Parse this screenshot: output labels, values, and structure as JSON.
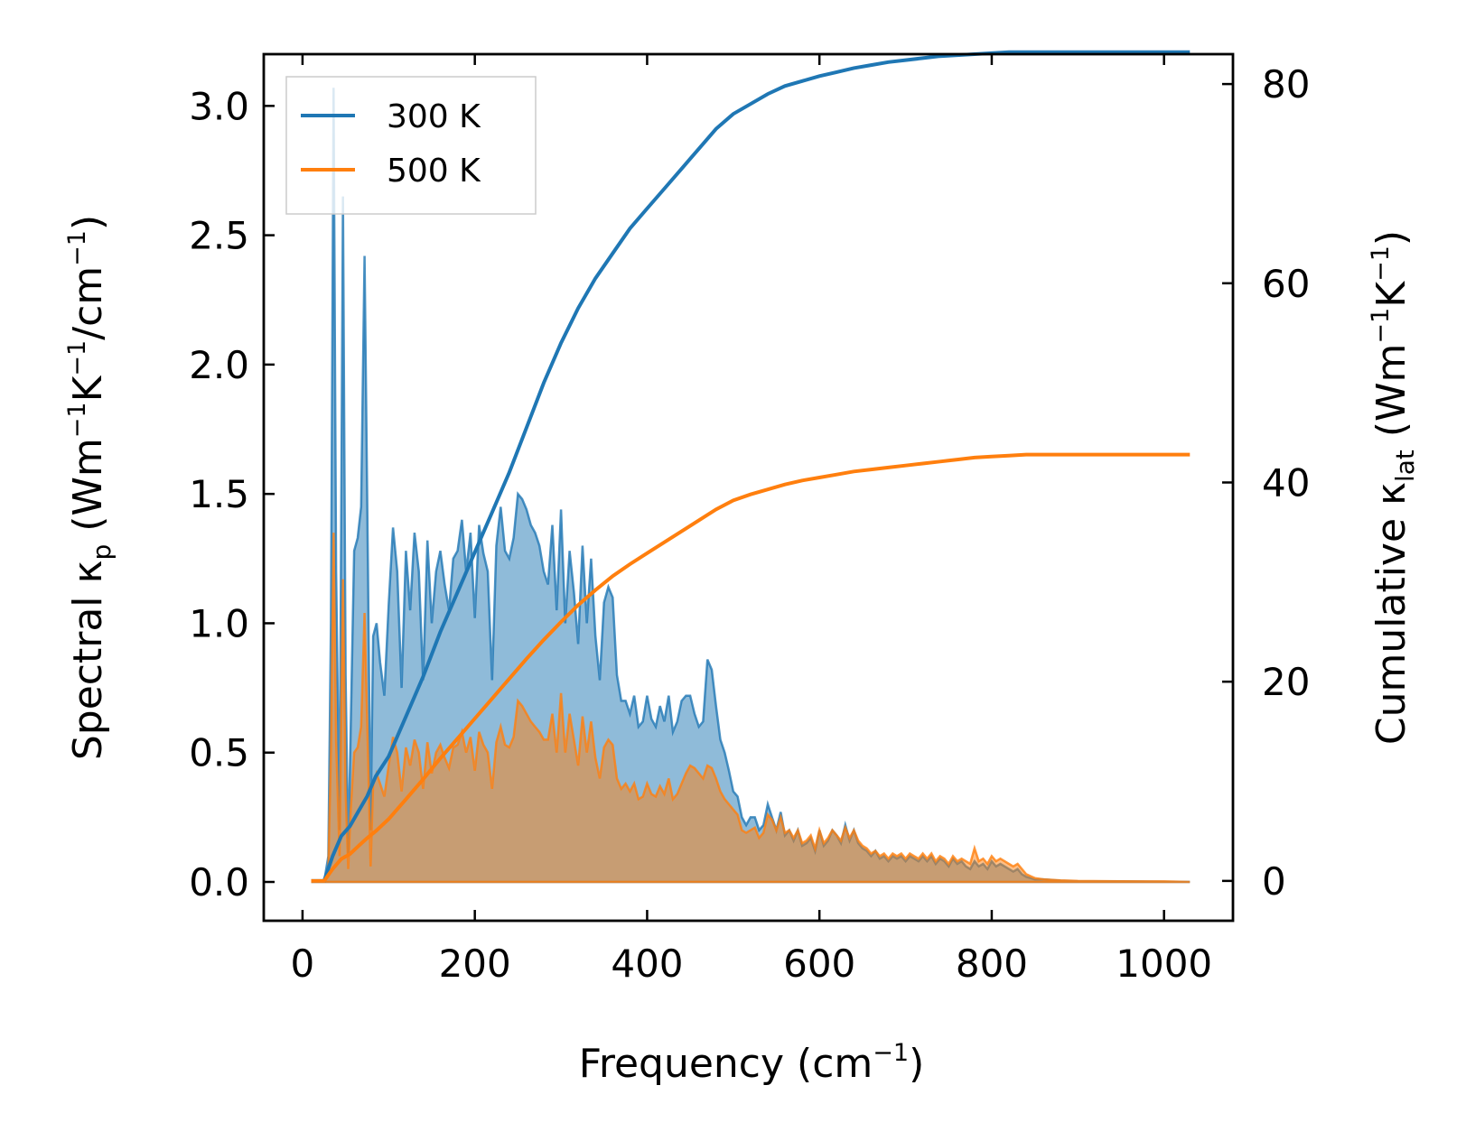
{
  "chart_data": {
    "type": "area+line (dual axis)",
    "xlabel": "Frequency",
    "xlabel_unit_base": "cm",
    "xlabel_unit_exp": "−1",
    "xlim": [
      -45,
      1080
    ],
    "xticks": [
      0,
      200,
      400,
      600,
      800,
      1000
    ],
    "xtick_labels": [
      "0",
      "200",
      "400",
      "600",
      "800",
      "1000"
    ],
    "y_left": {
      "label_prefix": "Spectral κ",
      "label_sub": "p",
      "label_unit": "(Wm",
      "label_exp1": "−1",
      "label_mid": "K",
      "label_exp2": "−1",
      "label_tail": "/cm",
      "label_exp3": "−1",
      "label_close": ")",
      "ylim": [
        -0.15,
        3.2
      ],
      "ticks": [
        0.0,
        0.5,
        1.0,
        1.5,
        2.0,
        2.5,
        3.0
      ],
      "tick_labels": [
        "0.0",
        "0.5",
        "1.0",
        "1.5",
        "2.0",
        "2.5",
        "3.0"
      ]
    },
    "y_right": {
      "label_prefix": "Cumulative κ",
      "label_sub": "lat",
      "label_unit": "(Wm",
      "label_exp1": "−1",
      "label_mid": "K",
      "label_exp2": "−1",
      "label_close": ")",
      "ylim": [
        -4,
        83
      ],
      "ticks": [
        0,
        20,
        40,
        60,
        80
      ],
      "tick_labels": [
        "0",
        "20",
        "40",
        "60",
        "80"
      ]
    },
    "legend": {
      "position": "top-left",
      "entries": [
        {
          "label": "300 K",
          "color": "#1f77b4"
        },
        {
          "label": "500 K",
          "color": "#ff7f0e"
        }
      ]
    },
    "series": [
      {
        "name": "300 K",
        "color": "#1f77b4",
        "fill_color": "#1f77b4",
        "fill_opacity": 0.5,
        "spectral": {
          "x": [
            10,
            25,
            30,
            33,
            36,
            39,
            43,
            47,
            50,
            53,
            56,
            60,
            64,
            68,
            72,
            76,
            79,
            82,
            86,
            90,
            95,
            100,
            105,
            110,
            115,
            120,
            125,
            130,
            135,
            140,
            145,
            150,
            155,
            160,
            165,
            170,
            175,
            180,
            185,
            190,
            195,
            200,
            205,
            210,
            215,
            220,
            225,
            230,
            235,
            240,
            245,
            250,
            255,
            260,
            265,
            270,
            275,
            280,
            285,
            290,
            295,
            300,
            305,
            310,
            315,
            320,
            325,
            330,
            335,
            340,
            345,
            350,
            355,
            360,
            365,
            370,
            375,
            380,
            385,
            390,
            395,
            400,
            405,
            410,
            415,
            420,
            425,
            430,
            435,
            440,
            445,
            450,
            455,
            460,
            465,
            470,
            475,
            480,
            485,
            490,
            495,
            500,
            505,
            510,
            515,
            520,
            525,
            530,
            535,
            540,
            545,
            550,
            555,
            560,
            565,
            570,
            575,
            580,
            585,
            590,
            595,
            600,
            605,
            610,
            615,
            620,
            625,
            630,
            635,
            640,
            645,
            650,
            655,
            660,
            665,
            670,
            675,
            680,
            685,
            690,
            695,
            700,
            705,
            710,
            715,
            720,
            725,
            730,
            735,
            740,
            745,
            750,
            755,
            760,
            765,
            770,
            775,
            780,
            785,
            790,
            795,
            800,
            805,
            810,
            815,
            820,
            825,
            830,
            835,
            840,
            850,
            860,
            880,
            900,
            950,
            1000,
            1030
          ],
          "y": [
            0,
            0,
            0.1,
            1.0,
            3.07,
            1.2,
            0.2,
            2.65,
            0.8,
            0.1,
            0.6,
            1.28,
            1.33,
            1.45,
            2.42,
            1.2,
            0.2,
            0.95,
            1.0,
            0.85,
            0.72,
            1.07,
            1.37,
            1.2,
            0.75,
            1.28,
            1.05,
            1.35,
            1.2,
            0.78,
            1.32,
            1.0,
            1.2,
            1.28,
            1.15,
            1.05,
            1.25,
            1.28,
            1.4,
            1.2,
            1.35,
            1.02,
            1.38,
            1.27,
            1.2,
            0.78,
            1.3,
            1.45,
            1.28,
            1.25,
            1.33,
            1.5,
            1.48,
            1.44,
            1.38,
            1.35,
            1.3,
            1.2,
            1.15,
            1.38,
            1.05,
            1.44,
            1.0,
            1.28,
            1.12,
            0.92,
            1.3,
            1.0,
            1.25,
            0.95,
            0.78,
            1.08,
            1.14,
            1.1,
            0.8,
            0.7,
            0.7,
            0.65,
            0.72,
            0.6,
            0.62,
            0.72,
            0.63,
            0.6,
            0.68,
            0.62,
            0.72,
            0.58,
            0.62,
            0.7,
            0.72,
            0.72,
            0.65,
            0.6,
            0.62,
            0.86,
            0.82,
            0.68,
            0.55,
            0.5,
            0.43,
            0.35,
            0.33,
            0.25,
            0.22,
            0.25,
            0.25,
            0.2,
            0.22,
            0.3,
            0.25,
            0.2,
            0.27,
            0.18,
            0.2,
            0.16,
            0.2,
            0.14,
            0.15,
            0.17,
            0.12,
            0.2,
            0.14,
            0.16,
            0.2,
            0.18,
            0.15,
            0.22,
            0.16,
            0.2,
            0.15,
            0.13,
            0.12,
            0.1,
            0.12,
            0.09,
            0.1,
            0.08,
            0.1,
            0.09,
            0.1,
            0.08,
            0.1,
            0.09,
            0.08,
            0.1,
            0.08,
            0.1,
            0.07,
            0.09,
            0.08,
            0.06,
            0.09,
            0.07,
            0.08,
            0.06,
            0.05,
            0.08,
            0.06,
            0.07,
            0.05,
            0.08,
            0.06,
            0.07,
            0.06,
            0.05,
            0.04,
            0.05,
            0.03,
            0.02,
            0.01,
            0.01,
            0.005,
            0.003,
            0.002,
            0.001,
            0.0
          ]
        },
        "cumulative": {
          "x": [
            10,
            25,
            35,
            45,
            55,
            65,
            75,
            85,
            100,
            120,
            140,
            160,
            180,
            200,
            220,
            240,
            260,
            280,
            300,
            320,
            340,
            360,
            380,
            400,
            420,
            440,
            460,
            480,
            500,
            520,
            540,
            560,
            580,
            600,
            620,
            640,
            660,
            680,
            700,
            720,
            740,
            760,
            780,
            800,
            820,
            840,
            860,
            900,
            950,
            1000,
            1030
          ],
          "y": [
            0,
            0,
            2.5,
            4.5,
            5.5,
            7.0,
            8.5,
            10.5,
            12.5,
            16.5,
            20.5,
            25.0,
            29.0,
            33.0,
            37.0,
            41.0,
            45.5,
            50.0,
            54.0,
            57.5,
            60.5,
            63.0,
            65.5,
            67.5,
            69.5,
            71.5,
            73.5,
            75.5,
            77.0,
            78.0,
            79.0,
            79.8,
            80.3,
            80.8,
            81.2,
            81.6,
            81.9,
            82.2,
            82.4,
            82.6,
            82.8,
            82.9,
            83.0,
            83.1,
            83.2,
            83.2,
            83.2,
            83.2,
            83.2,
            83.2,
            83.2
          ]
        }
      },
      {
        "name": "500 K",
        "color": "#ff7f0e",
        "fill_color": "#ff7f0e",
        "fill_opacity": 0.5,
        "spectral": {
          "x": [
            10,
            25,
            30,
            33,
            36,
            39,
            43,
            47,
            50,
            53,
            56,
            60,
            64,
            68,
            72,
            76,
            79,
            82,
            86,
            90,
            95,
            100,
            105,
            110,
            115,
            120,
            125,
            130,
            135,
            140,
            145,
            150,
            155,
            160,
            165,
            170,
            175,
            180,
            185,
            190,
            195,
            200,
            205,
            210,
            215,
            220,
            225,
            230,
            235,
            240,
            245,
            250,
            255,
            260,
            265,
            270,
            275,
            280,
            285,
            290,
            295,
            300,
            305,
            310,
            315,
            320,
            325,
            330,
            335,
            340,
            345,
            350,
            355,
            360,
            365,
            370,
            375,
            380,
            385,
            390,
            395,
            400,
            405,
            410,
            415,
            420,
            425,
            430,
            435,
            440,
            445,
            450,
            455,
            460,
            465,
            470,
            475,
            480,
            485,
            490,
            495,
            500,
            505,
            510,
            515,
            520,
            525,
            530,
            535,
            540,
            545,
            550,
            555,
            560,
            565,
            570,
            575,
            580,
            585,
            590,
            595,
            600,
            605,
            610,
            615,
            620,
            625,
            630,
            635,
            640,
            645,
            650,
            655,
            660,
            665,
            670,
            675,
            680,
            685,
            690,
            695,
            700,
            705,
            710,
            715,
            720,
            725,
            730,
            735,
            740,
            745,
            750,
            755,
            760,
            765,
            770,
            775,
            780,
            785,
            790,
            795,
            800,
            805,
            810,
            815,
            820,
            825,
            830,
            835,
            840,
            850,
            860,
            880,
            900,
            950,
            1000,
            1030
          ],
          "y": [
            0,
            0,
            0.05,
            0.5,
            1.35,
            0.55,
            0.1,
            1.17,
            0.35,
            0.05,
            0.28,
            0.5,
            0.52,
            0.6,
            1.04,
            0.5,
            0.06,
            0.38,
            0.42,
            0.38,
            0.33,
            0.45,
            0.56,
            0.5,
            0.35,
            0.52,
            0.45,
            0.55,
            0.5,
            0.36,
            0.54,
            0.42,
            0.5,
            0.53,
            0.48,
            0.44,
            0.52,
            0.53,
            0.58,
            0.5,
            0.56,
            0.43,
            0.58,
            0.53,
            0.5,
            0.36,
            0.54,
            0.6,
            0.53,
            0.52,
            0.56,
            0.7,
            0.68,
            0.65,
            0.62,
            0.6,
            0.58,
            0.55,
            0.55,
            0.65,
            0.5,
            0.73,
            0.5,
            0.65,
            0.55,
            0.45,
            0.64,
            0.5,
            0.62,
            0.48,
            0.4,
            0.52,
            0.55,
            0.53,
            0.4,
            0.36,
            0.38,
            0.35,
            0.38,
            0.32,
            0.33,
            0.38,
            0.34,
            0.33,
            0.37,
            0.34,
            0.4,
            0.32,
            0.34,
            0.38,
            0.42,
            0.45,
            0.44,
            0.42,
            0.4,
            0.45,
            0.44,
            0.4,
            0.35,
            0.32,
            0.3,
            0.28,
            0.26,
            0.2,
            0.19,
            0.2,
            0.21,
            0.17,
            0.19,
            0.26,
            0.24,
            0.2,
            0.25,
            0.19,
            0.2,
            0.17,
            0.2,
            0.15,
            0.16,
            0.18,
            0.13,
            0.2,
            0.15,
            0.17,
            0.2,
            0.18,
            0.16,
            0.21,
            0.17,
            0.2,
            0.16,
            0.14,
            0.13,
            0.11,
            0.12,
            0.1,
            0.11,
            0.09,
            0.11,
            0.1,
            0.11,
            0.09,
            0.11,
            0.1,
            0.09,
            0.11,
            0.09,
            0.11,
            0.08,
            0.1,
            0.09,
            0.07,
            0.1,
            0.08,
            0.09,
            0.08,
            0.07,
            0.13,
            0.08,
            0.09,
            0.07,
            0.1,
            0.08,
            0.09,
            0.08,
            0.07,
            0.06,
            0.07,
            0.05,
            0.03,
            0.015,
            0.01,
            0.006,
            0.004,
            0.003,
            0.002,
            0.0
          ]
        },
        "cumulative": {
          "x": [
            10,
            25,
            35,
            45,
            55,
            65,
            75,
            85,
            100,
            120,
            140,
            160,
            180,
            200,
            220,
            240,
            260,
            280,
            300,
            320,
            340,
            360,
            380,
            400,
            420,
            440,
            460,
            480,
            500,
            520,
            540,
            560,
            580,
            600,
            620,
            640,
            660,
            680,
            700,
            720,
            740,
            760,
            780,
            800,
            820,
            840,
            860,
            900,
            950,
            1000,
            1030
          ],
          "y": [
            0,
            0,
            1.2,
            2.2,
            2.7,
            3.5,
            4.3,
            5.0,
            6.2,
            8.2,
            10.2,
            12.3,
            14.3,
            16.3,
            18.3,
            20.3,
            22.3,
            24.2,
            26.0,
            27.7,
            29.2,
            30.6,
            31.8,
            32.9,
            34.0,
            35.1,
            36.2,
            37.3,
            38.2,
            38.8,
            39.3,
            39.8,
            40.2,
            40.5,
            40.8,
            41.1,
            41.3,
            41.5,
            41.7,
            41.9,
            42.1,
            42.3,
            42.5,
            42.6,
            42.7,
            42.8,
            42.8,
            42.8,
            42.8,
            42.8,
            42.8
          ]
        }
      }
    ]
  }
}
